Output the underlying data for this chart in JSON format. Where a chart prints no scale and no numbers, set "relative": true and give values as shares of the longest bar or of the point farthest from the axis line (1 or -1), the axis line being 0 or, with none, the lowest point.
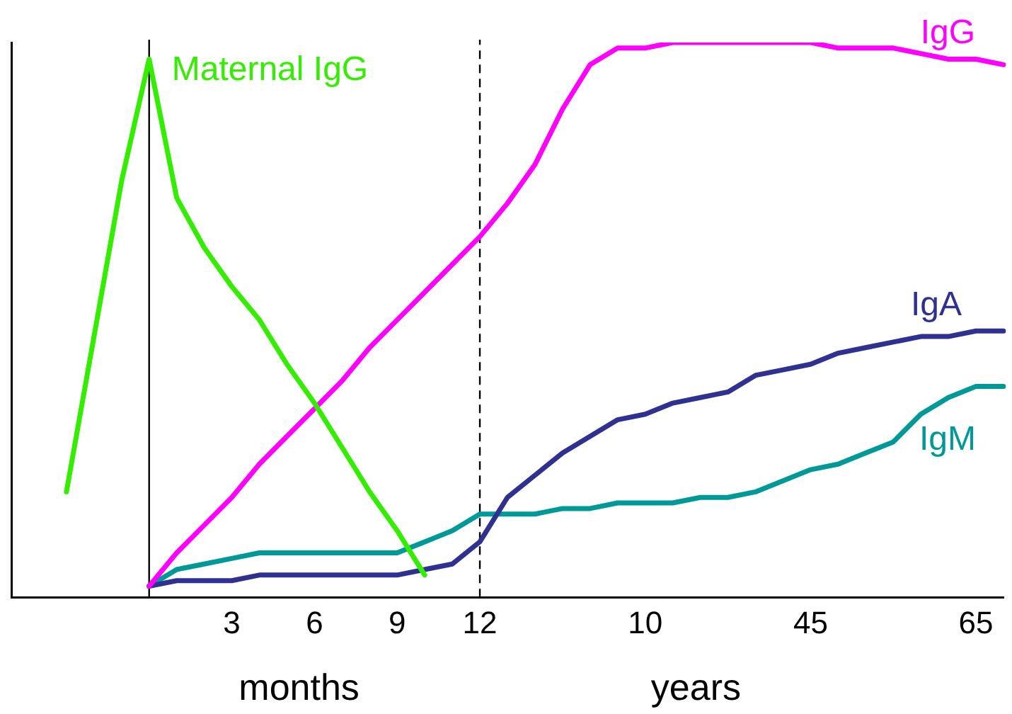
{
  "chart_data": {
    "type": "line",
    "relative": true,
    "categories": [
      null,
      null,
      null,
      null,
      null,
      null,
      null,
      null,
      "3",
      null,
      null,
      "6",
      null,
      null,
      "9",
      null,
      null,
      "12",
      null,
      null,
      null,
      null,
      null,
      "10",
      null,
      null,
      null,
      null,
      null,
      "45",
      null,
      null,
      null,
      null,
      null,
      "65",
      null
    ],
    "series": [
      {
        "name": "Maternal IgG",
        "color": "#33ee00",
        "values": [
          null,
          null,
          0.19,
          0.47,
          0.75,
          0.97,
          0.72,
          0.63,
          0.56,
          0.5,
          0.42,
          0.35,
          0.27,
          0.19,
          0.12,
          0.04,
          null,
          null,
          null,
          null,
          null,
          null,
          null,
          null,
          null,
          null,
          null,
          null,
          null,
          null,
          null,
          null,
          null,
          null,
          null,
          null,
          null
        ]
      },
      {
        "name": "IgG",
        "color": "#ff00ff",
        "values": [
          null,
          null,
          null,
          null,
          null,
          0.02,
          0.08,
          0.13,
          0.18,
          0.24,
          0.29,
          0.34,
          0.39,
          0.45,
          0.5,
          0.55,
          0.6,
          0.65,
          0.71,
          0.78,
          0.88,
          0.96,
          0.99,
          0.99,
          1,
          1,
          1,
          1,
          1,
          1,
          0.99,
          0.99,
          0.99,
          0.98,
          0.97,
          0.97,
          0.96
        ]
      },
      {
        "name": "IgA",
        "color": "#2e3192",
        "values": [
          null,
          null,
          null,
          null,
          null,
          0.02,
          0.03,
          0.03,
          0.03,
          0.04,
          0.04,
          0.04,
          0.04,
          0.04,
          0.04,
          0.05,
          0.06,
          0.1,
          0.18,
          0.22,
          0.26,
          0.29,
          0.32,
          0.33,
          0.35,
          0.36,
          0.37,
          0.4,
          0.41,
          0.42,
          0.44,
          0.45,
          0.46,
          0.47,
          0.47,
          0.48,
          0.48
        ]
      },
      {
        "name": "IgM",
        "color": "#009999",
        "values": [
          null,
          null,
          null,
          null,
          null,
          0.02,
          0.05,
          0.06,
          0.07,
          0.08,
          0.08,
          0.08,
          0.08,
          0.08,
          0.08,
          0.1,
          0.12,
          0.15,
          0.15,
          0.15,
          0.16,
          0.16,
          0.17,
          0.17,
          0.17,
          0.18,
          0.18,
          0.19,
          0.21,
          0.23,
          0.24,
          0.26,
          0.28,
          0.33,
          0.36,
          0.38,
          0.38
        ]
      }
    ],
    "ref_lines": [
      {
        "axis": "x",
        "value": "12",
        "color": "#000000",
        "line_style": "dashed"
      }
    ],
    "annotations": [
      "months",
      "years"
    ],
    "legend": false,
    "grid": false,
    "marker": "none",
    "line_style": "solid"
  }
}
